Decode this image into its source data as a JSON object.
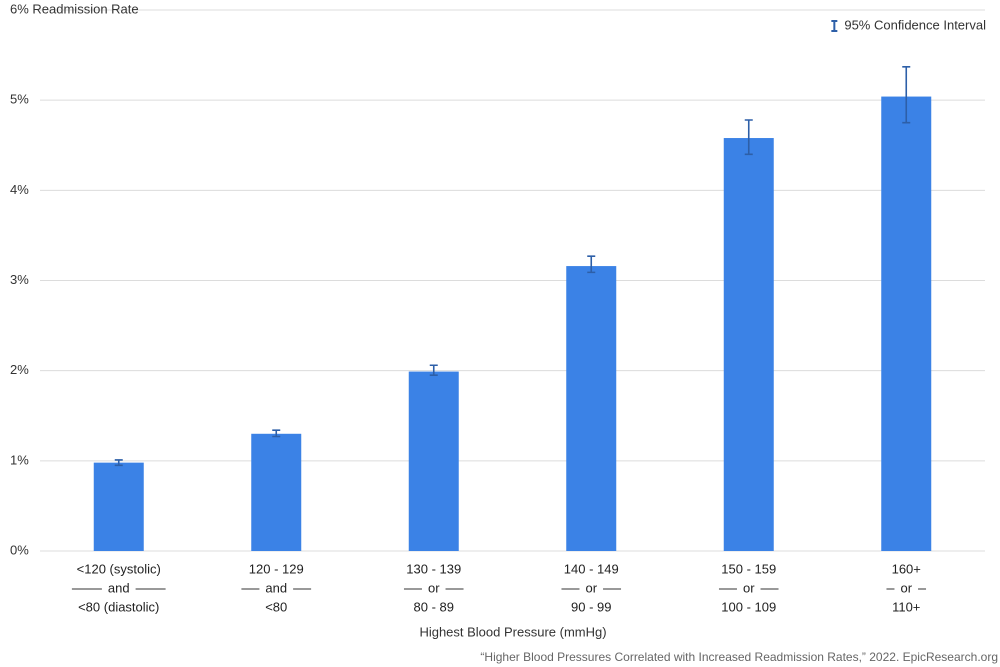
{
  "chart_data": {
    "type": "bar",
    "x_label": "Highest Blood Pressure (mmHg)",
    "source": "“Higher Blood Pressures Correlated with Increased Readmission Rates,” 2022. EpicResearch.org",
    "legend": "95% Confidence Interval",
    "legend_position": "top-right",
    "categories": [
      {
        "top": "<120 (systolic)",
        "joiner": "and",
        "bottom": "<80 (diastolic)"
      },
      {
        "top": "120 - 129",
        "joiner": "and",
        "bottom": "<80"
      },
      {
        "top": "130 - 139",
        "joiner": "or",
        "bottom": "80 - 89"
      },
      {
        "top": "140 - 149",
        "joiner": "or",
        "bottom": "90 - 99"
      },
      {
        "top": "150 - 159",
        "joiner": "or",
        "bottom": "100 - 109"
      },
      {
        "top": "160+",
        "joiner": "or",
        "bottom": "110+"
      }
    ],
    "values": [
      0.98,
      1.3,
      1.99,
      3.16,
      4.58,
      5.04
    ],
    "ci_low": [
      0.95,
      1.27,
      1.95,
      3.09,
      4.4,
      4.75
    ],
    "ci_high": [
      1.01,
      1.34,
      2.06,
      3.27,
      4.78,
      5.37
    ],
    "color": "#3b82e6",
    "error_color": "#2d5fa8",
    "ylim": [
      0,
      6
    ],
    "yticks": [
      {
        "value": 0,
        "label": "0%"
      },
      {
        "value": 1,
        "label": "1%"
      },
      {
        "value": 2,
        "label": "2%"
      },
      {
        "value": 3,
        "label": "3%"
      },
      {
        "value": 4,
        "label": "4%"
      },
      {
        "value": 5,
        "label": "5%"
      },
      {
        "value": 6,
        "label": "6% Readmission Rate"
      }
    ],
    "grid": true
  }
}
